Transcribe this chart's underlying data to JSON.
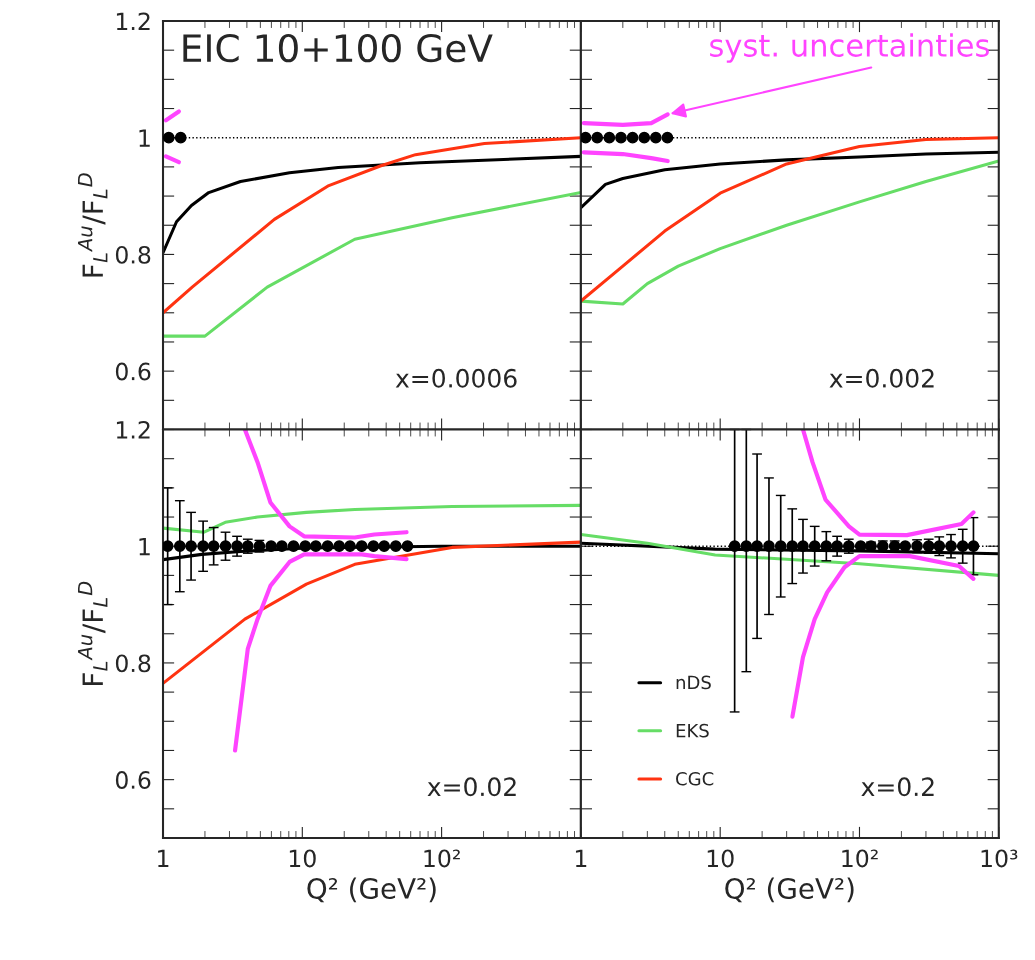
{
  "chart_data": [
    {
      "type": "line",
      "title": "EIC 10+100 GeV",
      "ylabel": "F$_{L}$$^{Au}$/F$_{L}$$^{D}$",
      "tick_labels": "y",
      "log": "x",
      "xlim": [
        1,
        1000
      ],
      "ylim": [
        0.5,
        1.2
      ],
      "xticks": [
        {
          "value": 1,
          "label": null
        },
        {
          "value": 10,
          "label": null
        },
        {
          "value": 100,
          "label": null
        },
        {
          "value": 1000,
          "label": null
        }
      ],
      "yticks": [
        {
          "value": 0.55,
          "label": null
        },
        0.6,
        {
          "value": 0.65,
          "label": null
        },
        {
          "value": 0.7,
          "label": null
        },
        {
          "value": 0.75,
          "label": null
        },
        0.8,
        {
          "value": 0.85,
          "label": null
        },
        {
          "value": 0.9,
          "label": null
        },
        {
          "value": 0.95,
          "label": null
        },
        1,
        {
          "value": 1.05,
          "label": null
        },
        {
          "value": 1.1,
          "label": null
        },
        {
          "value": 1.15,
          "label": null
        },
        1.2
      ],
      "ref_lines": [
        {
          "axis": "y",
          "value": 1,
          "color": "#000000",
          "line_style": "dotted"
        }
      ],
      "annotations": [
        "x=0.0006"
      ],
      "series": [
        {
          "type": "line",
          "color": "#000000",
          "x": [
            1,
            1.25,
            1.6,
            2.13,
            3.6,
            8.1,
            18.1,
            70,
            1000
          ],
          "values": [
            0.803,
            0.856,
            0.884,
            0.906,
            0.925,
            0.94,
            0.949,
            0.957,
            0.968
          ]
        },
        {
          "type": "line",
          "color": "#66dd66",
          "x": [
            1,
            2,
            5.6,
            23.8,
            119,
            1000
          ],
          "values": [
            0.66,
            0.66,
            0.744,
            0.826,
            0.863,
            0.906
          ]
        },
        {
          "type": "line",
          "color": "#ff3311",
          "x": [
            1,
            1.62,
            6.3,
            15.5,
            36.7,
            65,
            203,
            1000
          ],
          "values": [
            0.7,
            0.744,
            0.86,
            0.918,
            0.952,
            0.971,
            0.99,
            1.0
          ]
        },
        {
          "type": "scatter",
          "marker": "circle",
          "color": "#000000",
          "x": [
            1.1,
            1.34
          ],
          "values": [
            1,
            1
          ]
        },
        {
          "type": "line",
          "color": "#ff44ff",
          "x": [
            1.05,
            1.3
          ],
          "values": [
            1.03,
            1.045
          ]
        },
        {
          "type": "line",
          "color": "#ff44ff",
          "x": [
            1.05,
            1.3
          ],
          "values": [
            0.968,
            0.958
          ]
        }
      ]
    },
    {
      "type": "line",
      "tick_labels": false,
      "log": "x",
      "xlim": [
        1,
        1000
      ],
      "ylim": [
        0.5,
        1.2
      ],
      "xticks": [
        {
          "value": 1,
          "label": null
        },
        {
          "value": 10,
          "label": null
        },
        {
          "value": 100,
          "label": null
        },
        {
          "value": 1000,
          "label": null
        }
      ],
      "yticks": [
        {
          "value": 0.55,
          "label": null
        },
        {
          "value": 0.6,
          "label": null
        },
        {
          "value": 0.65,
          "label": null
        },
        {
          "value": 0.7,
          "label": null
        },
        {
          "value": 0.75,
          "label": null
        },
        {
          "value": 0.8,
          "label": null
        },
        {
          "value": 0.85,
          "label": null
        },
        {
          "value": 0.9,
          "label": null
        },
        {
          "value": 0.95,
          "label": null
        },
        {
          "value": 1,
          "label": null
        },
        {
          "value": 1.05,
          "label": null
        },
        {
          "value": 1.1,
          "label": null
        },
        {
          "value": 1.15,
          "label": null
        },
        {
          "value": 1.2,
          "label": null
        }
      ],
      "ref_lines": [
        {
          "axis": "y",
          "value": 1,
          "color": "#000000",
          "line_style": "dotted"
        }
      ],
      "annotations": [
        "x=0.002",
        {
          "text": "syst. uncertainties",
          "x": 4.2,
          "y": 1.04
        }
      ],
      "series": [
        {
          "type": "line",
          "color": "#000000",
          "x": [
            1,
            1.5,
            2,
            4,
            10,
            30,
            100,
            300,
            1000
          ],
          "values": [
            0.88,
            0.92,
            0.93,
            0.945,
            0.955,
            0.962,
            0.967,
            0.972,
            0.975
          ]
        },
        {
          "type": "line",
          "color": "#66dd66",
          "x": [
            1,
            2,
            3,
            5,
            10,
            30,
            100,
            300,
            1000
          ],
          "values": [
            0.72,
            0.715,
            0.75,
            0.78,
            0.81,
            0.85,
            0.89,
            0.925,
            0.96
          ]
        },
        {
          "type": "line",
          "color": "#ff3311",
          "x": [
            1,
            2,
            4,
            10,
            30,
            100,
            300,
            1000
          ],
          "values": [
            0.72,
            0.78,
            0.84,
            0.905,
            0.955,
            0.985,
            0.997,
            1.0
          ]
        },
        {
          "type": "scatter",
          "marker": "circle",
          "color": "#000000",
          "x": [
            1.08,
            1.31,
            1.6,
            1.94,
            2.35,
            2.85,
            3.45,
            4.18
          ],
          "values": [
            1,
            1,
            1,
            1,
            1,
            1,
            1,
            1
          ]
        },
        {
          "type": "line",
          "color": "#ff44ff",
          "x": [
            1.05,
            2,
            3.2,
            4.2
          ],
          "values": [
            1.025,
            1.022,
            1.025,
            1.04
          ]
        },
        {
          "type": "line",
          "color": "#ff44ff",
          "x": [
            1.05,
            2,
            3.2,
            4.2
          ],
          "values": [
            0.975,
            0.972,
            0.965,
            0.96
          ]
        }
      ]
    },
    {
      "type": "line",
      "xlabel": "Q² (GeV²)",
      "ylabel": "F$_{L}$$^{Au}$/F$_{L}$$^{D}$",
      "log": "x",
      "xlim": [
        1,
        1000
      ],
      "ylim": [
        0.5,
        1.2
      ],
      "xticks": [
        1,
        10,
        {
          "value": 100,
          "label": "10²"
        },
        {
          "value": 1000,
          "label": null
        }
      ],
      "yticks": [
        {
          "value": 0.55,
          "label": null
        },
        0.6,
        {
          "value": 0.65,
          "label": null
        },
        {
          "value": 0.7,
          "label": null
        },
        {
          "value": 0.75,
          "label": null
        },
        0.8,
        {
          "value": 0.85,
          "label": null
        },
        {
          "value": 0.9,
          "label": null
        },
        {
          "value": 0.95,
          "label": null
        },
        1,
        {
          "value": 1.05,
          "label": null
        },
        {
          "value": 1.1,
          "label": null
        },
        {
          "value": 1.15,
          "label": null
        },
        1.2
      ],
      "ref_lines": [
        {
          "axis": "y",
          "value": 1,
          "color": "#000000",
          "line_style": "dotted"
        }
      ],
      "annotations": [
        "x=0.02"
      ],
      "series": [
        {
          "type": "line",
          "color": "#000000",
          "x": [
            1,
            1.9,
            3.6,
            10.7,
            100,
            1000
          ],
          "values": [
            0.977,
            0.986,
            0.991,
            0.997,
            1.0,
            1.0
          ]
        },
        {
          "type": "line",
          "color": "#66dd66",
          "x": [
            1,
            1.97,
            2.8,
            4.77,
            10.7,
            23.8,
            119,
            1000
          ],
          "values": [
            1.031,
            1.024,
            1.041,
            1.05,
            1.058,
            1.063,
            1.068,
            1.07
          ]
        },
        {
          "type": "line",
          "color": "#ff3311",
          "x": [
            1,
            3.87,
            10.7,
            23.8,
            119,
            1000
          ],
          "values": [
            0.765,
            0.875,
            0.935,
            0.969,
            0.998,
            1.007
          ]
        },
        {
          "type": "scatter",
          "marker": "circle",
          "color": "#000000",
          "x": [
            1.08,
            1.32,
            1.59,
            1.94,
            2.31,
            2.81,
            3.4,
            4.06,
            4.92,
            5.97,
            7.13,
            8.65,
            10.5,
            12.5,
            15.2,
            18.4,
            22,
            26.7,
            32.4,
            38.7,
            46.9,
            56.9
          ],
          "values": [
            1,
            1,
            1,
            1,
            1,
            1,
            1,
            1,
            1,
            1,
            1,
            1,
            1,
            1,
            1,
            1,
            1,
            1,
            1,
            1,
            1,
            1
          ],
          "errors": [
            0.1,
            0.078,
            0.058,
            0.043,
            0.032,
            0.024,
            0.017,
            0.012,
            0.01,
            null,
            null,
            null,
            null,
            null,
            null,
            null,
            null,
            null,
            null,
            null,
            null,
            null
          ]
        },
        {
          "type": "line",
          "color": "#ff44ff",
          "x": [
            3.87,
            4.77,
            5.9,
            8.1,
            10.3,
            23.8,
            32.9,
            56
          ],
          "values": [
            1.2,
            1.144,
            1.075,
            1.034,
            1.017,
            1.015,
            1.02,
            1.024
          ]
        },
        {
          "type": "line",
          "color": "#ff44ff",
          "x": [
            3.29,
            4.06,
            4.77,
            5.9,
            8.1,
            10.3,
            26.7,
            32.9,
            56
          ],
          "values": [
            0.65,
            0.824,
            0.875,
            0.932,
            0.973,
            0.986,
            0.986,
            0.983,
            0.978
          ]
        }
      ]
    },
    {
      "type": "line",
      "xlabel": "Q² (GeV²)",
      "tick_labels": "x",
      "log": "x",
      "xlim": [
        1,
        1000
      ],
      "ylim": [
        0.5,
        1.2
      ],
      "legend": "bottom left",
      "xticks": [
        1,
        10,
        {
          "value": 100,
          "label": "10²"
        },
        {
          "value": 1000,
          "label": "10³"
        }
      ],
      "yticks": [
        {
          "value": 0.55,
          "label": null
        },
        {
          "value": 0.6,
          "label": null
        },
        {
          "value": 0.65,
          "label": null
        },
        {
          "value": 0.7,
          "label": null
        },
        {
          "value": 0.75,
          "label": null
        },
        {
          "value": 0.8,
          "label": null
        },
        {
          "value": 0.85,
          "label": null
        },
        {
          "value": 0.9,
          "label": null
        },
        {
          "value": 0.95,
          "label": null
        },
        {
          "value": 1,
          "label": null
        },
        {
          "value": 1.05,
          "label": null
        },
        {
          "value": 1.1,
          "label": null
        },
        {
          "value": 1.15,
          "label": null
        },
        {
          "value": 1.2,
          "label": null
        }
      ],
      "ref_lines": [
        {
          "axis": "y",
          "value": 1,
          "color": "#000000",
          "line_style": "dotted"
        }
      ],
      "annotations": [
        "x=0.2"
      ],
      "series": [
        {
          "type": "line",
          "name": "nDS",
          "color": "#000000",
          "x": [
            1,
            9.2,
            100,
            1000
          ],
          "values": [
            1.005,
            0.995,
            0.992,
            0.987
          ]
        },
        {
          "type": "line",
          "name": "EKS",
          "color": "#66dd66",
          "x": [
            1,
            3,
            9.2,
            100,
            1000
          ],
          "values": [
            1.02,
            1.005,
            0.985,
            0.97,
            0.95
          ]
        },
        {
          "name": "CGC",
          "color": "#ff3311"
        },
        {
          "type": "scatter",
          "marker": "circle",
          "color": "#000000",
          "x": [
            12.7,
            15.4,
            18.4,
            22.4,
            27.2,
            32.9,
            39.3,
            47.7,
            57.8,
            69.1,
            83.8,
            102,
            121,
            147,
            179,
            213,
            259,
            314,
            374,
            454,
            551,
            658
          ],
          "values": [
            1,
            1,
            1,
            1,
            1,
            1,
            1,
            1,
            1,
            1,
            1,
            1,
            1,
            1,
            1,
            1,
            1,
            1,
            1,
            1,
            1,
            1
          ],
          "errors": [
            [
              0.716,
              1.2
            ],
            [
              0.785,
              1.2
            ],
            0.158,
            0.117,
            0.087,
            0.064,
            0.046,
            0.034,
            0.025,
            0.017,
            0.012,
            null,
            0.007,
            0.009,
            0.009,
            null,
            0.011,
            0.012,
            0.016,
            0.02,
            0.029,
            0.049
          ]
        },
        {
          "type": "line",
          "color": "#ff44ff",
          "x": [
            39.3,
            46,
            57,
            84,
            100,
            219,
            540,
            658
          ],
          "values": [
            1.2,
            1.144,
            1.08,
            1.034,
            1.02,
            1.019,
            1.038,
            1.058
          ]
        },
        {
          "type": "line",
          "color": "#ff44ff",
          "x": [
            33,
            39.3,
            47.7,
            58.6,
            78,
            100,
            230,
            518,
            658
          ],
          "values": [
            0.708,
            0.81,
            0.875,
            0.921,
            0.964,
            0.983,
            0.983,
            0.966,
            0.944
          ]
        }
      ]
    }
  ]
}
